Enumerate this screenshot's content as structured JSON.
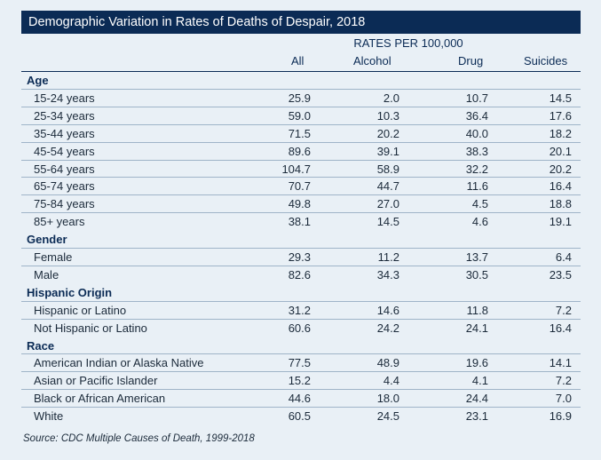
{
  "title": "Demographic Variation in Rates of Deaths of Despair, 2018",
  "rates_header": "RATES PER 100,000",
  "columns": [
    "All",
    "Alcohol",
    "Drug",
    "Suicides"
  ],
  "sections": [
    {
      "name": "Age",
      "rows": [
        {
          "label": "15-24 years",
          "all": "25.9",
          "alcohol": "2.0",
          "drug": "10.7",
          "suicides": "14.5"
        },
        {
          "label": "25-34 years",
          "all": "59.0",
          "alcohol": "10.3",
          "drug": "36.4",
          "suicides": "17.6"
        },
        {
          "label": "35-44 years",
          "all": "71.5",
          "alcohol": "20.2",
          "drug": "40.0",
          "suicides": "18.2"
        },
        {
          "label": "45-54 years",
          "all": "89.6",
          "alcohol": "39.1",
          "drug": "38.3",
          "suicides": "20.1"
        },
        {
          "label": "55-64 years",
          "all": "104.7",
          "alcohol": "58.9",
          "drug": "32.2",
          "suicides": "20.2"
        },
        {
          "label": "65-74 years",
          "all": "70.7",
          "alcohol": "44.7",
          "drug": "11.6",
          "suicides": "16.4"
        },
        {
          "label": "75-84 years",
          "all": "49.8",
          "alcohol": "27.0",
          "drug": "4.5",
          "suicides": "18.8"
        },
        {
          "label": "85+ years",
          "all": "38.1",
          "alcohol": "14.5",
          "drug": "4.6",
          "suicides": "19.1"
        }
      ]
    },
    {
      "name": "Gender",
      "rows": [
        {
          "label": "Female",
          "all": "29.3",
          "alcohol": "11.2",
          "drug": "13.7",
          "suicides": "6.4"
        },
        {
          "label": "Male",
          "all": "82.6",
          "alcohol": "34.3",
          "drug": "30.5",
          "suicides": "23.5"
        }
      ]
    },
    {
      "name": "Hispanic Origin",
      "rows": [
        {
          "label": "Hispanic or Latino",
          "all": "31.2",
          "alcohol": "14.6",
          "drug": "11.8",
          "suicides": "7.2"
        },
        {
          "label": "Not Hispanic or Latino",
          "all": "60.6",
          "alcohol": "24.2",
          "drug": "24.1",
          "suicides": "16.4"
        }
      ]
    },
    {
      "name": "Race",
      "rows": [
        {
          "label": "American Indian or Alaska Native",
          "all": "77.5",
          "alcohol": "48.9",
          "drug": "19.6",
          "suicides": "14.1"
        },
        {
          "label": "Asian or Pacific Islander",
          "all": "15.2",
          "alcohol": "4.4",
          "drug": "4.1",
          "suicides": "7.2"
        },
        {
          "label": "Black or African American",
          "all": "44.6",
          "alcohol": "18.0",
          "drug": "24.4",
          "suicides": "7.0"
        },
        {
          "label": "White",
          "all": "60.5",
          "alcohol": "24.5",
          "drug": "23.1",
          "suicides": "16.9"
        }
      ]
    }
  ],
  "source": "Source: CDC Multiple Causes of Death, 1999-2018",
  "colors": {
    "header_bg": "#0b2b55",
    "page_bg": "#e9f0f6",
    "rule": "#9fb4c8"
  }
}
